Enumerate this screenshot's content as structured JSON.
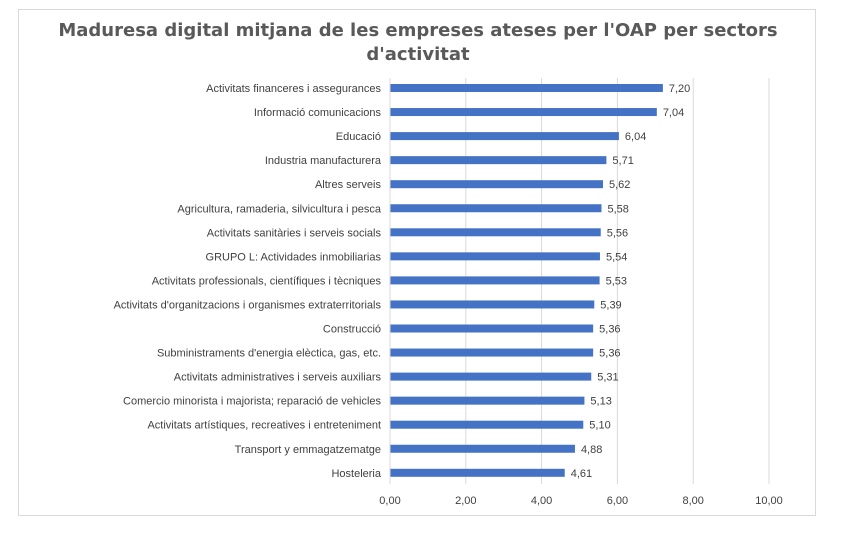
{
  "chart_data": {
    "type": "bar",
    "orientation": "horizontal",
    "title_lines": [
      "Maduresa digital mitjana de les empreses ateses per l'OAP per sectors",
      "d'activitat"
    ],
    "categories": [
      "Activitats financeres i assegurances",
      "Informació  comunicacions",
      "Educació",
      "Industria manufacturera",
      "Altres serveis",
      "Agricultura, ramaderia, silvicultura i pesca",
      "Activitats sanitàries i serveis socials",
      "GRUPO L: Actividades inmobiliarias",
      "Activitats professionals, científiques i tècniques",
      "Activitats d'organitzacions i organismes extraterritorials",
      "Construcció",
      "Subministraments d'energia elèctica, gas, etc.",
      "Activitats administratives i serveis auxiliars",
      "Comercio minorista i majorista; reparació de vehicles",
      "Activitats artístiques, recreatives i entreteniment",
      "Transport y emmagatzematge",
      "Hosteleria"
    ],
    "values": [
      7.2,
      7.04,
      6.04,
      5.71,
      5.62,
      5.58,
      5.56,
      5.54,
      5.53,
      5.39,
      5.36,
      5.36,
      5.31,
      5.13,
      5.1,
      4.88,
      4.61
    ],
    "value_labels": [
      "7,20",
      "7,04",
      "6,04",
      "5,71",
      "5,62",
      "5,58",
      "5,56",
      "5,54",
      "5,53",
      "5,39",
      "5,36",
      "5,36",
      "5,31",
      "5,13",
      "5,10",
      "4,88",
      "4,61"
    ],
    "xlim": [
      0,
      10
    ],
    "x_ticks": [
      0,
      2,
      4,
      6,
      8,
      10
    ],
    "x_tick_labels": [
      "0,00",
      "2,00",
      "4,00",
      "6,00",
      "8,00",
      "10,00"
    ],
    "grid": "vertical",
    "legend": "none",
    "bar_color": "#4472c4",
    "grid_color": "#d9d9d9",
    "text_color": "#404040"
  }
}
